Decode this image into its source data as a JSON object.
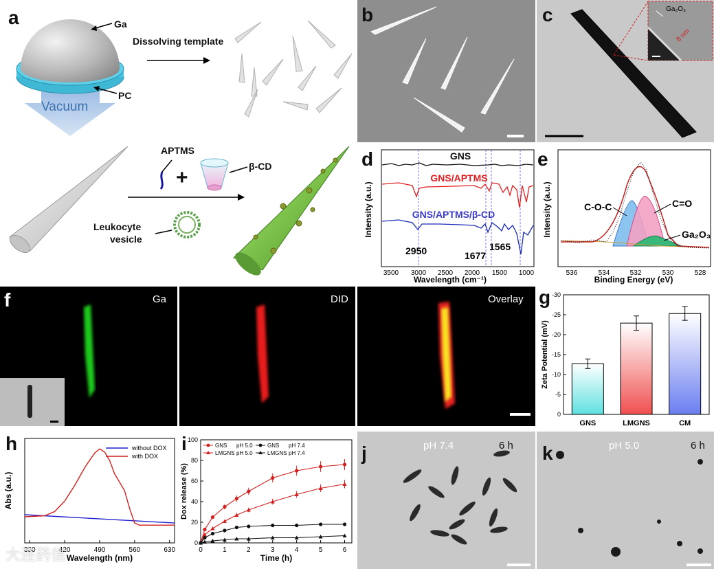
{
  "panel_labels": {
    "a": "a",
    "b": "b",
    "c": "c",
    "d": "d",
    "e": "e",
    "f": "f",
    "g": "g",
    "h": "h",
    "i": "i",
    "j": "j",
    "k": "k"
  },
  "schematic": {
    "ga_label": "Ga",
    "pc_label": "PC",
    "vacuum_label": "Vacuum",
    "dissolving_label": "Dissolving template",
    "aptms_label": "APTMS",
    "bcd_label": "β-CD",
    "leukocyte_label_line1": "Leukocyte",
    "leukocyte_label_line2": "vesicle",
    "plus": "+"
  },
  "tem_inset": {
    "label": "Ga₂O₃",
    "thickness": "8 nm"
  },
  "ftir": {
    "traces": [
      {
        "name": "GNS",
        "color": "#111111"
      },
      {
        "name": "GNS/APTMS",
        "color": "#e02020"
      },
      {
        "name": "GNS/APTMS/β-CD",
        "color": "#3a3ac8"
      }
    ],
    "peaks": [
      "2950",
      "1677",
      "1565"
    ],
    "xticks": [
      "3500",
      "3000",
      "2500",
      "2000",
      "1500",
      "1000"
    ],
    "xlabel": "Wavelength (cm⁻¹)",
    "ylabel": "Intensity (a.u.)"
  },
  "xps": {
    "components": [
      "C-O-C",
      "C=O",
      "Ga₂O₃"
    ],
    "xticks": [
      "536",
      "534",
      "532",
      "530",
      "528"
    ],
    "xlabel": "Binding Energy (eV)",
    "ylabel": "Intensity (a.u.)"
  },
  "fluor": {
    "ga": "Ga",
    "did": "DID",
    "overlay": "Overlay"
  },
  "chart_data": [
    {
      "id": "g",
      "type": "bar",
      "categories": [
        "GNS",
        "LMGNS",
        "CM"
      ],
      "values": [
        -12.7,
        -22.9,
        -25.3
      ],
      "errors": [
        1.2,
        1.8,
        1.7
      ],
      "colors": [
        "#5fe0e0",
        "#f05050",
        "#6a7ef0"
      ],
      "ylabel": "Zeta Potential (mV)",
      "ylim": [
        0,
        -30
      ],
      "yticks": [
        "0",
        "-5",
        "-10",
        "-15",
        "-20",
        "-25",
        "-30"
      ]
    },
    {
      "id": "h",
      "type": "line",
      "xlabel": "Wavelength (nm)",
      "ylabel": "Abs (a.u.)",
      "xlim": [
        340,
        640
      ],
      "xticks": [
        "350",
        "420",
        "490",
        "560",
        "630"
      ],
      "series": [
        {
          "name": "without DOX",
          "color": "#1f1fcf",
          "x": [
            340,
            640
          ],
          "y": [
            0.27,
            0.19
          ]
        },
        {
          "name": "with DOX",
          "color": "#d21f1f",
          "x": [
            340,
            380,
            400,
            420,
            440,
            460,
            480,
            490,
            500,
            510,
            520,
            530,
            540,
            550,
            560,
            570,
            600,
            640
          ],
          "y": [
            0.25,
            0.26,
            0.3,
            0.4,
            0.55,
            0.72,
            0.86,
            0.9,
            0.87,
            0.79,
            0.66,
            0.58,
            0.5,
            0.33,
            0.19,
            0.17,
            0.17,
            0.17
          ]
        }
      ]
    },
    {
      "id": "i",
      "type": "line",
      "xlabel": "Time (h)",
      "ylabel": "Dox release (%)",
      "xlim": [
        0,
        6.3
      ],
      "ylim": [
        0,
        100
      ],
      "xticks": [
        "0",
        "1",
        "2",
        "3",
        "4",
        "5",
        "6"
      ],
      "yticks": [
        "0",
        "20",
        "40",
        "60",
        "80",
        "100"
      ],
      "x": [
        0,
        0.17,
        0.5,
        1,
        1.5,
        2,
        3,
        4,
        5,
        6
      ],
      "series": [
        {
          "name": "GNS",
          "ph": "pH 5.0",
          "color": "#d21f1f",
          "marker": "circle",
          "y": [
            0,
            13,
            25,
            35,
            43,
            50,
            63,
            70,
            74,
            76
          ]
        },
        {
          "name": "LMGNS",
          "ph": "pH 5.0",
          "color": "#d21f1f",
          "marker": "triangle",
          "y": [
            0,
            8,
            14,
            21,
            27,
            32,
            40,
            47,
            53,
            57
          ]
        },
        {
          "name": "GNS",
          "ph": "pH 7.4",
          "color": "#111111",
          "marker": "circle",
          "y": [
            0,
            5,
            9,
            12,
            15,
            16,
            17,
            17,
            18,
            18
          ]
        },
        {
          "name": "LMGNS",
          "ph": "pH 7.4",
          "color": "#111111",
          "marker": "triangle",
          "y": [
            0,
            1,
            2,
            3,
            4,
            4,
            5,
            5,
            6,
            7
          ]
        }
      ]
    }
  ],
  "micro": {
    "j_ph": "pH 7.4",
    "j_time": "6 h",
    "k_ph": "pH 5.0",
    "k_time": "6 h"
  },
  "watermark": "大连药信"
}
